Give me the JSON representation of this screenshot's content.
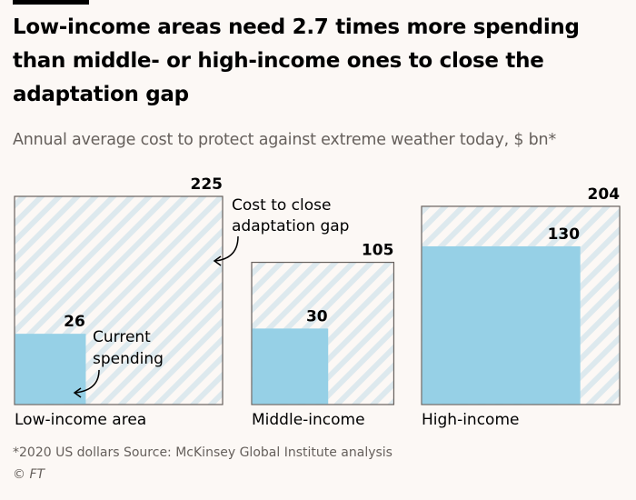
{
  "title": "Low-income areas need 2.7 times more spending than middle- or high-income ones to close the adaptation gap",
  "subtitle": "Annual average cost to protect against extreme weather today, $ bn*",
  "footnote": "*2020 US dollars Source: McKinsey Global Institute analysis",
  "credit": "© FT",
  "colors": {
    "current": "#96d0e6",
    "gap_stripe": "#dde9ee",
    "background": "#fcf8f5",
    "border": "#66605c"
  },
  "chart_data": {
    "type": "proportional-area squares",
    "categories": [
      "Low-income area",
      "Middle-income",
      "High-income"
    ],
    "series": [
      {
        "name": "Cost to close adaptation gap",
        "values": [
          225,
          105,
          204
        ]
      },
      {
        "name": "Current spending",
        "values": [
          26,
          30,
          130
        ]
      }
    ],
    "annotations": {
      "gap": "Cost to close adaptation gap",
      "current": "Current spending"
    }
  }
}
